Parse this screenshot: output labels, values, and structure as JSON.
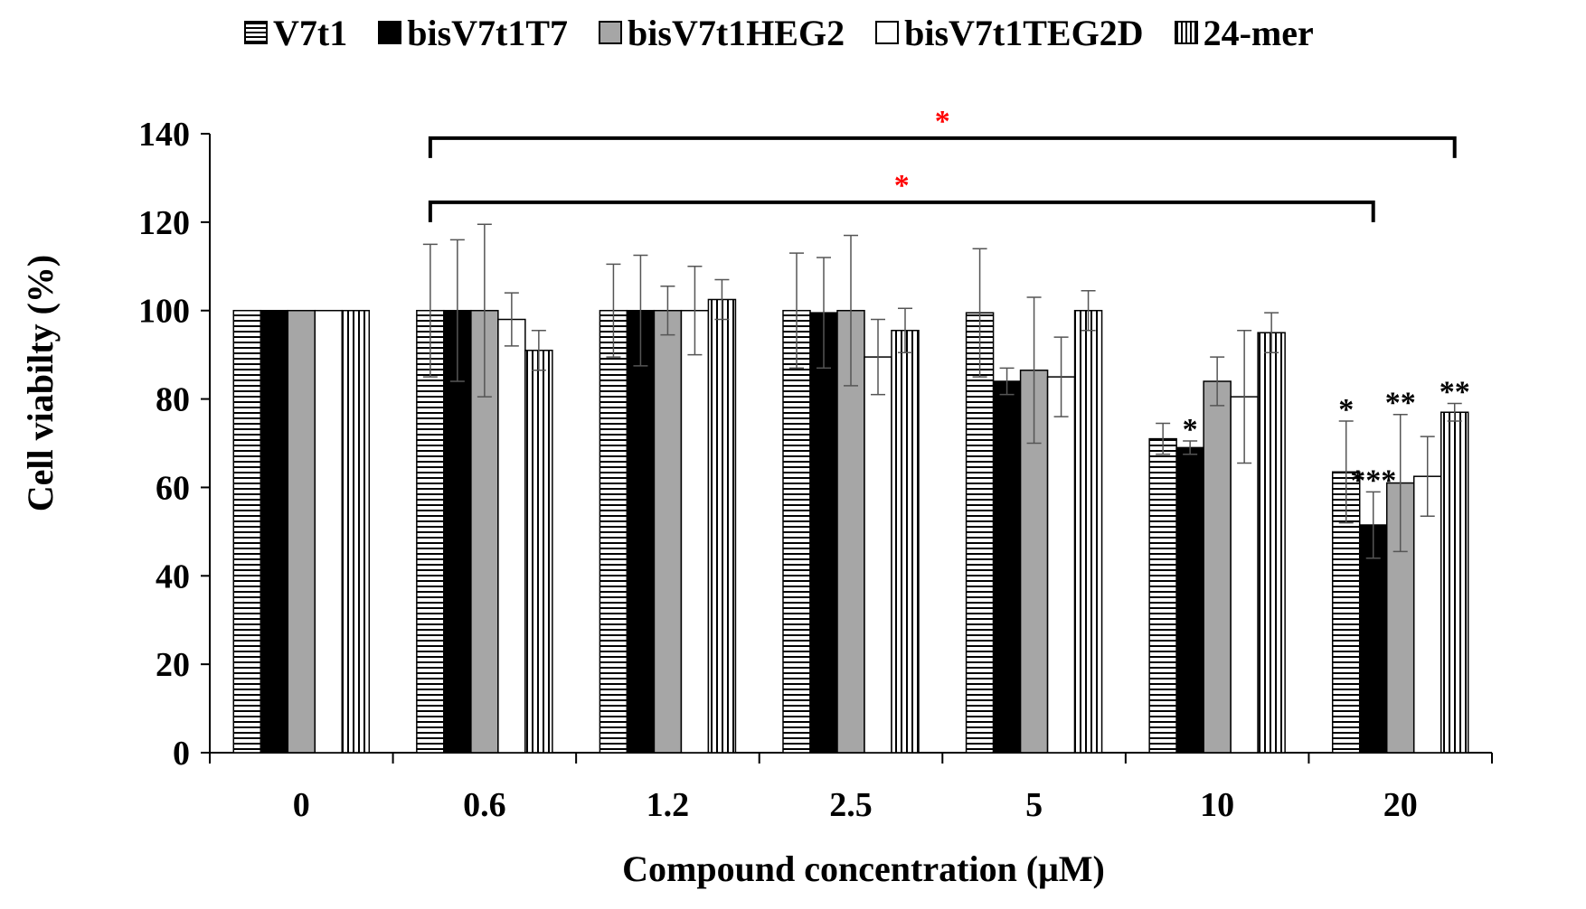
{
  "chart_data": {
    "type": "bar",
    "title": "",
    "xlabel": "Compound concentration (μM)",
    "ylabel": "Cell viabilty (%)",
    "ylim": [
      0,
      140
    ],
    "yticks": [
      0,
      20,
      40,
      60,
      80,
      100,
      120,
      140
    ],
    "categories": [
      "0",
      "0.6",
      "1.2",
      "2.5",
      "5",
      "10",
      "20"
    ],
    "series": [
      {
        "name": "V7t1",
        "pattern": "horizontal-stripes",
        "fill": "#ffffff",
        "values": [
          100,
          100,
          100,
          100,
          99.5,
          71,
          63.5
        ],
        "errors": [
          0,
          15,
          10.5,
          13,
          14.5,
          3.5,
          11.5
        ],
        "annotations": [
          "",
          "",
          "",
          "",
          "",
          "",
          "*"
        ]
      },
      {
        "name": "bisV7t1T7",
        "pattern": "solid",
        "fill": "#000000",
        "values": [
          100,
          100,
          100,
          99.5,
          84,
          69,
          51.5
        ],
        "errors": [
          0,
          16,
          12.5,
          12.5,
          3,
          1.5,
          7.5
        ],
        "annotations": [
          "",
          "",
          "",
          "",
          "",
          "*",
          "***"
        ]
      },
      {
        "name": "bisV7t1HEG2",
        "pattern": "solid",
        "fill": "#a6a6a6",
        "values": [
          100,
          100,
          100,
          100,
          86.5,
          84,
          61
        ],
        "errors": [
          0,
          19.5,
          5.5,
          17,
          16.5,
          5.5,
          15.5
        ],
        "annotations": [
          "",
          "",
          "",
          "",
          "",
          "",
          "**"
        ]
      },
      {
        "name": "bisV7t1TEG2D",
        "pattern": "solid",
        "fill": "#ffffff",
        "values": [
          100,
          98,
          100,
          89.5,
          85,
          80.5,
          62.5
        ],
        "errors": [
          0,
          6,
          10,
          8.5,
          9,
          15,
          9
        ],
        "annotations": [
          "",
          "",
          "",
          "",
          "",
          "",
          ""
        ]
      },
      {
        "name": "24-mer",
        "pattern": "vertical-stripes",
        "fill": "#ffffff",
        "values": [
          100,
          91,
          102.5,
          95.5,
          100,
          95,
          77
        ],
        "errors": [
          0,
          4.5,
          4.5,
          5,
          4.5,
          4.5,
          2
        ],
        "annotations": [
          "",
          "",
          "",
          "",
          "",
          "",
          "**"
        ]
      }
    ],
    "brackets": [
      {
        "from_category": "0.6",
        "from_series": "V7t1",
        "to_category": "20",
        "to_series": "24-mer",
        "level": 139,
        "label": "*",
        "color": "#ff0000"
      },
      {
        "from_category": "0.6",
        "from_series": "V7t1",
        "to_category": "20",
        "to_series": "bisV7t1T7",
        "level": 124.5,
        "label": "*",
        "color": "#ff0000"
      }
    ],
    "legend": {
      "position": "top"
    }
  }
}
